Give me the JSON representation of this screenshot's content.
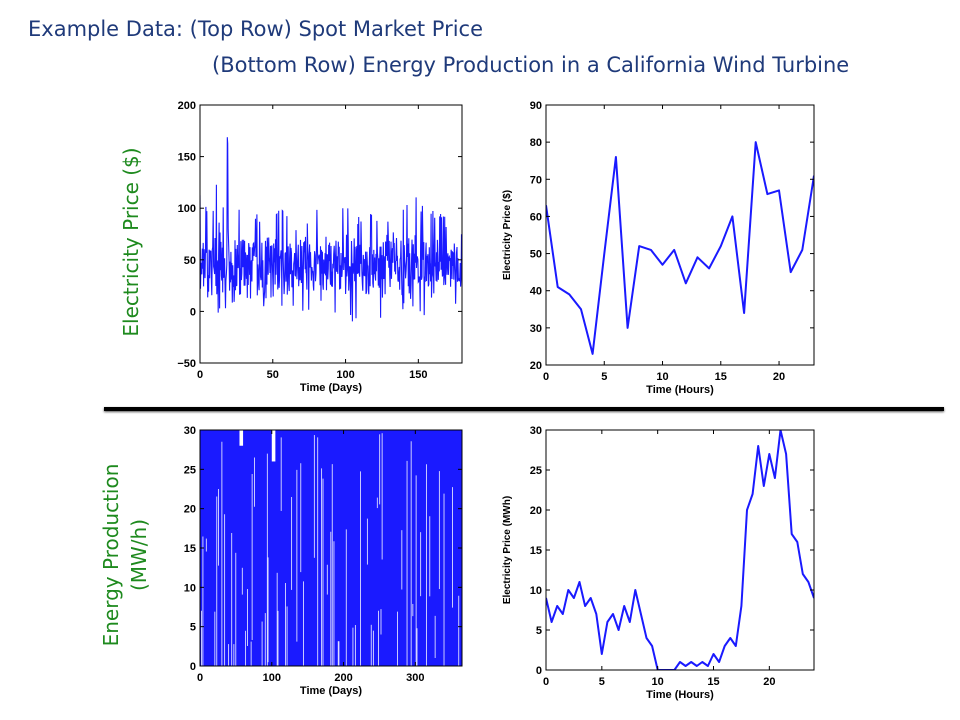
{
  "heading": {
    "line1": "Example Data:  (Top Row) Spot Market Price",
    "line2": "(Bottom Row) Energy Production in a California Wind Turbine"
  },
  "side_labels": {
    "price": "Electricity Price ($)",
    "energy_line1": "Energy Production",
    "energy_line2": "(MW/h)"
  },
  "colors": {
    "series": "#1a1aff",
    "heading": "#1f3a7a",
    "side_label": "#1e8a1e"
  },
  "chart_data": [
    {
      "id": "price-daily",
      "type": "line",
      "xlabel": "Time (Days)",
      "ylabel": "",
      "xlim": [
        0,
        180
      ],
      "ylim": [
        -50,
        200
      ],
      "xticks": [
        0,
        50,
        100,
        150
      ],
      "yticks": [
        -50,
        0,
        50,
        100,
        150,
        200
      ],
      "series": [
        {
          "envelope": true,
          "x": [
            0,
            5,
            10,
            15,
            20,
            25,
            30,
            35,
            40,
            45,
            50,
            55,
            60,
            65,
            70,
            75,
            80,
            85,
            90,
            95,
            100,
            105,
            110,
            115,
            120,
            125,
            130,
            135,
            140,
            145,
            150,
            155,
            160,
            165,
            170,
            175,
            180
          ],
          "high": [
            117,
            100,
            105,
            178,
            166,
            110,
            100,
            90,
            95,
            100,
            105,
            100,
            95,
            85,
            90,
            96,
            100,
            105,
            98,
            100,
            110,
            100,
            90,
            95,
            100,
            88,
            92,
            95,
            100,
            110,
            112,
            96,
            100,
            98,
            90,
            95,
            75
          ],
          "low": [
            5,
            8,
            0,
            -10,
            0,
            5,
            10,
            5,
            0,
            5,
            10,
            5,
            0,
            5,
            -5,
            0,
            5,
            8,
            0,
            -5,
            0,
            -15,
            -10,
            0,
            5,
            -20,
            -25,
            -5,
            0,
            5,
            0,
            -5,
            0,
            5,
            10,
            5,
            10
          ],
          "mid": [
            50,
            45,
            40,
            55,
            50,
            40,
            45,
            50,
            40,
            45,
            50,
            45,
            40,
            45,
            50,
            45,
            40,
            45,
            50,
            40,
            45,
            50,
            45,
            40,
            45,
            40,
            45,
            50,
            40,
            45,
            50,
            45,
            40,
            45,
            40,
            45,
            40
          ]
        }
      ]
    },
    {
      "id": "price-hourly",
      "type": "line",
      "xlabel": "Time (Hours)",
      "ylabel": "Electricity Price ($)",
      "xlim": [
        0,
        23
      ],
      "ylim": [
        20,
        90
      ],
      "xticks": [
        0,
        5,
        10,
        15,
        20
      ],
      "yticks": [
        20,
        30,
        40,
        50,
        60,
        70,
        80,
        90
      ],
      "series": [
        {
          "x": [
            0,
            1,
            2,
            3,
            4,
            5,
            6,
            7,
            8,
            9,
            10,
            11,
            12,
            13,
            14,
            15,
            16,
            17,
            18,
            19,
            20,
            21,
            22,
            23
          ],
          "y": [
            63,
            41,
            39,
            35,
            23,
            50,
            76,
            30,
            52,
            51,
            47,
            51,
            42,
            49,
            46,
            52,
            60,
            34,
            80,
            66,
            67,
            45,
            51,
            71
          ]
        }
      ]
    },
    {
      "id": "energy-daily",
      "type": "line",
      "xlabel": "Time (Days)",
      "ylabel": "",
      "xlim": [
        0,
        365
      ],
      "ylim": [
        0,
        30
      ],
      "xticks": [
        0,
        100,
        200,
        300
      ],
      "yticks": [
        0,
        5,
        10,
        15,
        20,
        25,
        30
      ],
      "series": [
        {
          "envelope": true,
          "x": [
            0,
            365
          ],
          "high": [
            30,
            30
          ],
          "low": [
            0,
            0
          ],
          "mid": [
            15,
            15
          ]
        }
      ]
    },
    {
      "id": "energy-hourly",
      "type": "line",
      "xlabel": "Time (Hours)",
      "ylabel": "Electricity Price (MWh)",
      "xlim": [
        0,
        24
      ],
      "ylim": [
        0,
        30
      ],
      "xticks": [
        0,
        5,
        10,
        15,
        20
      ],
      "yticks": [
        0,
        5,
        10,
        15,
        20,
        25,
        30
      ],
      "series": [
        {
          "x": [
            0,
            0.5,
            1,
            1.5,
            2,
            2.5,
            3,
            3.5,
            4,
            4.5,
            5,
            5.5,
            6,
            6.5,
            7,
            7.5,
            8,
            8.5,
            9,
            9.5,
            10,
            10.5,
            11,
            11.5,
            12,
            12.5,
            13,
            13.5,
            14,
            14.5,
            15,
            15.5,
            16,
            16.5,
            17,
            17.5,
            18,
            18.5,
            19,
            19.5,
            20,
            20.5,
            21,
            21.5,
            22,
            22.5,
            23,
            23.5,
            24
          ],
          "y": [
            9,
            6,
            8,
            7,
            10,
            9,
            11,
            8,
            9,
            7,
            2,
            6,
            7,
            5,
            8,
            6,
            10,
            7,
            4,
            3,
            0,
            0,
            0,
            0,
            1,
            0.5,
            1,
            0.5,
            1,
            0.5,
            2,
            1,
            3,
            4,
            3,
            8,
            20,
            22,
            28,
            23,
            27,
            24,
            30,
            27,
            17,
            16,
            12,
            11,
            9
          ]
        }
      ]
    }
  ]
}
